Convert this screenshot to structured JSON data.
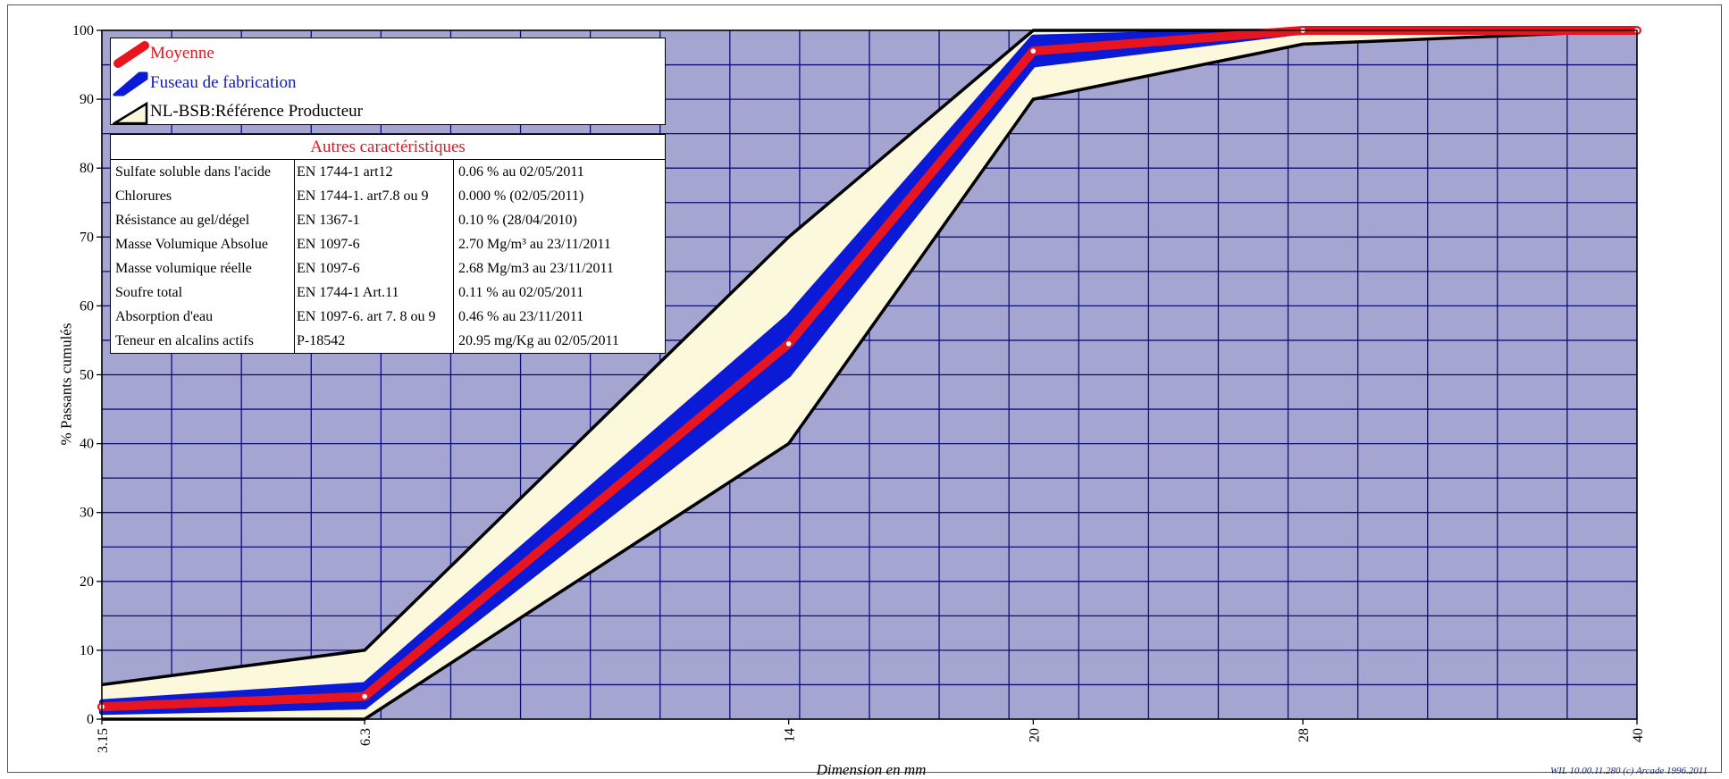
{
  "chart_data": {
    "type": "line",
    "xlabel": "Dimension en mm",
    "ylabel": "% Passants cumulés",
    "x_ticks": [
      "3.15",
      "6.3",
      "14",
      "20",
      "28",
      "40"
    ],
    "ylim": [
      0,
      100
    ],
    "y_ticks": [
      "0",
      "10",
      "20",
      "30",
      "40",
      "50",
      "60",
      "70",
      "80",
      "90",
      "100"
    ],
    "grid": true,
    "legend_position": "top-left",
    "series": [
      {
        "name": "Moyenne",
        "color": "#e8141e",
        "x": [
          "3.15",
          "6.3",
          "14",
          "20",
          "28",
          "40"
        ],
        "values": [
          1.8,
          3.3,
          54.5,
          97,
          100,
          100
        ]
      },
      {
        "name": "Fuseau de fabrication",
        "color": "#0a1ad6",
        "x": [
          "3.15",
          "6.3",
          "14",
          "20",
          "28",
          "40"
        ],
        "upper": [
          2.5,
          5,
          58.5,
          99,
          100,
          100
        ],
        "lower": [
          1,
          1.8,
          50,
          95,
          99.8,
          100
        ]
      },
      {
        "name": "NL-BSB:Référence Producteur",
        "color": "#000000",
        "fill": "#fbf8dc",
        "x": [
          "3.15",
          "6.3",
          "14",
          "20",
          "28",
          "40"
        ],
        "upper": [
          5,
          10,
          70,
          100,
          100,
          100
        ],
        "lower": [
          0,
          0,
          40,
          90,
          98,
          100
        ]
      }
    ]
  },
  "legend": {
    "items": [
      "Moyenne",
      "Fuseau de fabrication",
      "NL-BSB:Référence Producteur"
    ]
  },
  "info_table": {
    "title": "Autres caractéristiques",
    "rows": [
      [
        "Sulfate soluble dans l'acide",
        "EN 1744-1 art12",
        "0.06 % au 02/05/2011"
      ],
      [
        "Chlorures",
        "EN 1744-1. art7.8 ou 9",
        "0.000 % (02/05/2011)"
      ],
      [
        "Résistance au gel/dégel",
        "EN 1367-1",
        "0.10 % (28/04/2010)"
      ],
      [
        "Masse Volumique Absolue",
        "EN 1097-6",
        "2.70 Mg/m³ au 23/11/2011"
      ],
      [
        "Masse volumique réelle",
        "EN 1097-6",
        "2.68 Mg/m3 au 23/11/2011"
      ],
      [
        "Soufre total",
        "EN 1744-1 Art.11",
        "0.11 % au 02/05/2011"
      ],
      [
        "Absorption d'eau",
        "EN 1097-6. art 7. 8 ou 9",
        "0.46 % au 23/11/2011"
      ],
      [
        "Teneur en alcalins actifs",
        "P-18542",
        "20.95 mg/Kg au 02/05/2011"
      ]
    ]
  },
  "credit": "WIL 10.00.11.280 (c) Arcade 1996.2011",
  "colors": {
    "plot_bg": "#a5a5d2",
    "grid": "#0d0d7a",
    "accent_red": "#e8141e",
    "band_blue": "#0a1ad6",
    "cream": "#fbf8dc"
  }
}
